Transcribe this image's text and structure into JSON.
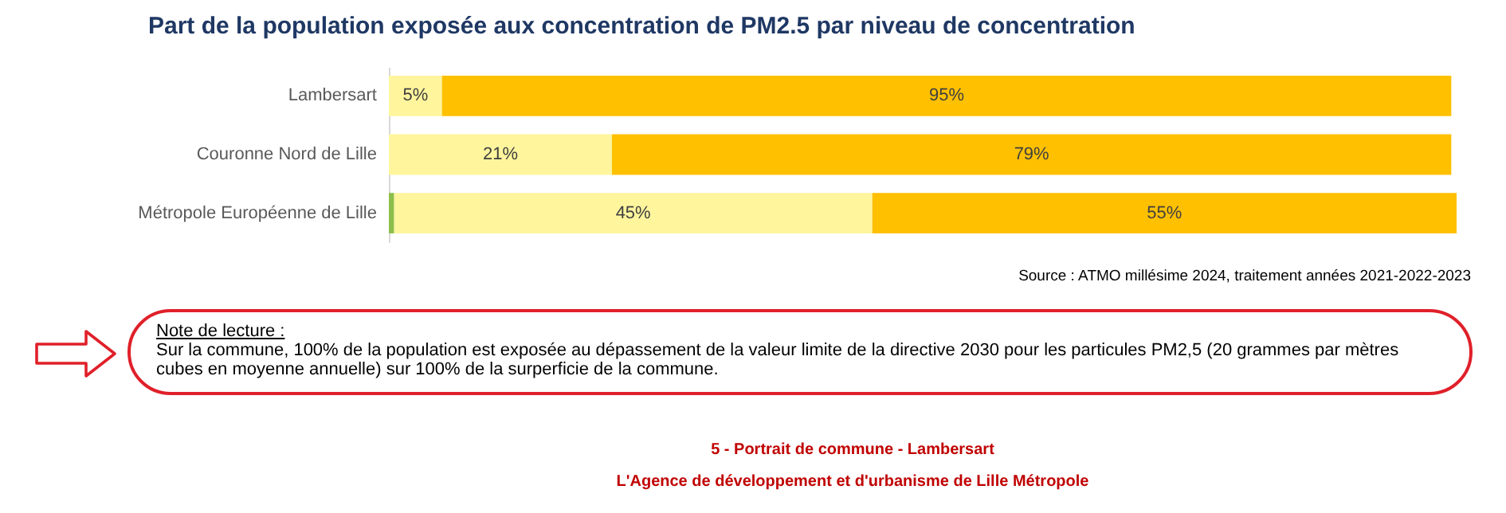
{
  "chart_data": {
    "type": "bar",
    "orientation": "horizontal",
    "stacked": true,
    "tick_labels": "y",
    "title": "Part de la population exposée aux concentration de PM2.5 par niveau de concentration",
    "categories": [
      "Lambersart",
      "Couronne Nord de Lille",
      "Métropole Européenne de Lille"
    ],
    "series": [
      {
        "color": "#8cbf4a",
        "values": [
          null,
          null,
          0.5
        ],
        "value_labels": [
          null,
          null,
          null
        ]
      },
      {
        "color": "#fff59d",
        "values": [
          5,
          21,
          45
        ],
        "value_labels": [
          "5%",
          "21%",
          "45%"
        ]
      },
      {
        "color": "#ffc000",
        "values": [
          95,
          79,
          55
        ],
        "value_labels": [
          "95%",
          "79%",
          "55%"
        ]
      }
    ],
    "annotations": [
      "Source : ATMO millésime 2024, traitement années 2021-2022-2023",
      "Note de lecture :",
      "Sur la commune, 100% de la population est exposée au dépassement de la valeur limite de la directive 2030 pour les particules PM2,5 (20 grammes par mètres cubes en moyenne annuelle) sur 100% de la surperficie de la commune.",
      "5 - Portrait de commune - Lambersart",
      "L'Agence de développement et d'urbanisme de Lille Métropole"
    ]
  }
}
